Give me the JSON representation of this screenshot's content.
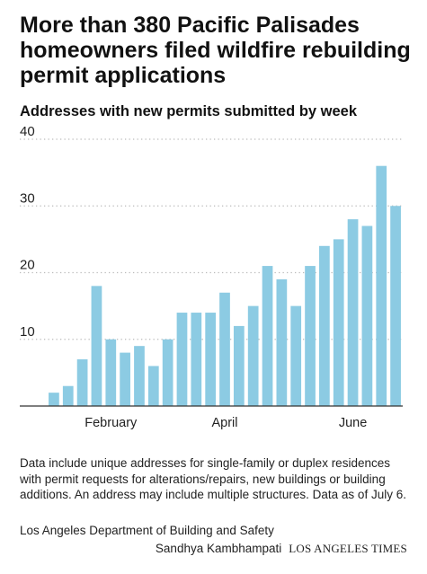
{
  "headline": "More than 380 Pacific Palisades homeowners filed wildfire rebuilding permit applications",
  "subheadline": "Addresses with new permits submitted by week",
  "note": "Data include unique addresses for single-family or duplex residences with permit requests for alterations/repairs, new buildings or building additions. An address may include multiple structures. Data as of July 6.",
  "source": "Los Angeles Department of Building and Safety",
  "byline": "Sandhya Kambhampati",
  "publisher": "LOS ANGELES TIMES",
  "colors": {
    "bar": "#8ccbe3",
    "grid": "#bbbbbb",
    "axis": "#333333",
    "text": "#222222"
  },
  "chart_data": {
    "type": "bar",
    "title": "Addresses with new permits submitted by week",
    "xlabel": "",
    "ylabel": "",
    "ylim": [
      0,
      40
    ],
    "yticks": [
      10,
      20,
      30,
      40
    ],
    "grid": "horizontal dotted",
    "values": [
      2,
      3,
      7,
      18,
      10,
      8,
      9,
      6,
      10,
      14,
      14,
      14,
      17,
      12,
      15,
      21,
      19,
      15,
      21,
      24,
      25,
      28,
      27,
      36,
      30
    ],
    "month_labels": [
      {
        "label": "February",
        "bar_index": 4
      },
      {
        "label": "April",
        "bar_index": 12
      },
      {
        "label": "June",
        "bar_index": 21
      }
    ]
  }
}
